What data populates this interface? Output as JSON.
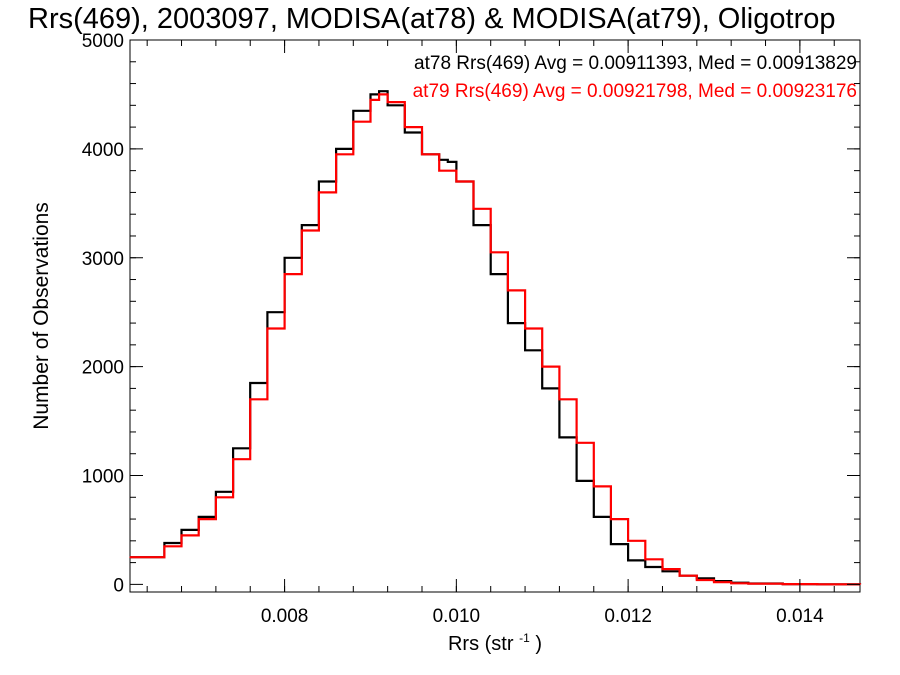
{
  "chart_data": {
    "type": "line",
    "title": "Rrs(469), 2003097, MODISA(at78) & MODISA(at79), Oligotrop",
    "xlabel": "Rrs (str",
    "xlabel_sup": "-1",
    "xlabel_close": ")",
    "ylabel": "Number of Observations",
    "xlim": [
      0.0062,
      0.0147
    ],
    "ylim": [
      -70,
      5000
    ],
    "xticks": [
      0.008,
      0.01,
      0.012,
      0.014
    ],
    "xtick_labels": [
      "0.008",
      "0.010",
      "0.012",
      "0.014"
    ],
    "yticks": [
      0,
      1000,
      2000,
      3000,
      4000,
      5000
    ],
    "ytick_labels": [
      "0",
      "1000",
      "2000",
      "3000",
      "4000",
      "5000"
    ],
    "grid": false,
    "step_style": "histogram",
    "series": [
      {
        "name": "at78",
        "color": "#000000",
        "label": "at78 Rrs(469) Avg = 0.00911393, Med = 0.00913829",
        "x": [
          0.0062,
          0.0066,
          0.0068,
          0.007,
          0.0072,
          0.0074,
          0.0076,
          0.0078,
          0.008,
          0.0082,
          0.0084,
          0.0086,
          0.0088,
          0.009,
          0.0091,
          0.0092,
          0.0094,
          0.0096,
          0.0098,
          0.0099,
          0.01,
          0.0102,
          0.0104,
          0.0106,
          0.0108,
          0.011,
          0.0112,
          0.0114,
          0.0116,
          0.0118,
          0.012,
          0.0122,
          0.0124,
          0.0126,
          0.0128,
          0.013,
          0.0132,
          0.0134,
          0.0138,
          0.0142,
          0.0147
        ],
        "y": [
          250,
          380,
          500,
          620,
          850,
          1250,
          1850,
          2500,
          3000,
          3300,
          3700,
          4000,
          4350,
          4500,
          4530,
          4400,
          4150,
          3950,
          3900,
          3880,
          3700,
          3300,
          2850,
          2400,
          2150,
          1800,
          1350,
          950,
          620,
          370,
          220,
          160,
          120,
          80,
          55,
          30,
          15,
          8,
          3,
          1,
          0
        ]
      },
      {
        "name": "at79",
        "color": "#ff0000",
        "label": "at79 Rrs(469) Avg = 0.00921798, Med = 0.00923176",
        "x": [
          0.0062,
          0.0066,
          0.0068,
          0.007,
          0.0072,
          0.0074,
          0.0076,
          0.0078,
          0.008,
          0.0082,
          0.0084,
          0.0086,
          0.0088,
          0.009,
          0.0091,
          0.0092,
          0.0094,
          0.0096,
          0.0098,
          0.01,
          0.0102,
          0.0104,
          0.0106,
          0.0108,
          0.011,
          0.0112,
          0.0114,
          0.0116,
          0.0118,
          0.012,
          0.0122,
          0.0124,
          0.0126,
          0.0128,
          0.013,
          0.0132,
          0.0134,
          0.0138,
          0.0142,
          0.0147
        ],
        "y": [
          250,
          350,
          450,
          600,
          800,
          1150,
          1700,
          2350,
          2850,
          3250,
          3600,
          3950,
          4250,
          4450,
          4500,
          4430,
          4200,
          3950,
          3800,
          3700,
          3450,
          3050,
          2700,
          2350,
          2000,
          1700,
          1300,
          900,
          600,
          400,
          230,
          140,
          80,
          40,
          20,
          10,
          6,
          3,
          1,
          0
        ]
      }
    ]
  }
}
